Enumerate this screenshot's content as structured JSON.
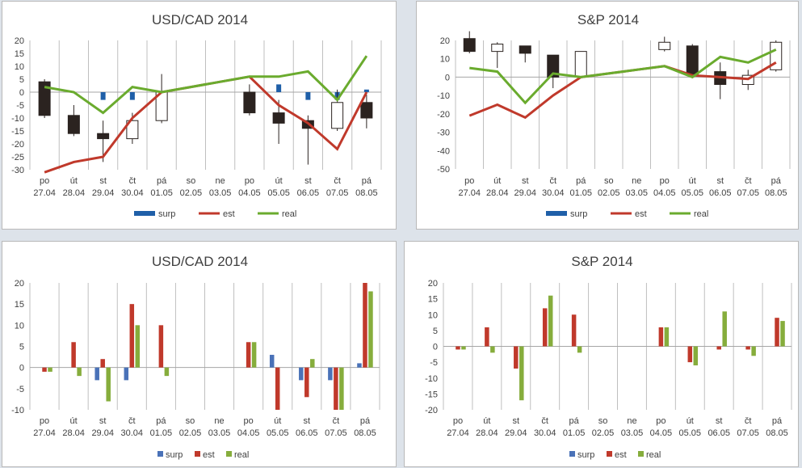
{
  "colors": {
    "surp": "#1f5fa8",
    "est": "#c0392b",
    "real": "#6aab2e",
    "candle_down": "#2b2320",
    "candle_up": "#ffffff",
    "grid": "#bfbfbf",
    "text": "#404040",
    "bar_surp": "#4a72b8",
    "bar_est": "#c0392b",
    "bar_real": "#86ad3c"
  },
  "chart_data": [
    {
      "type": "line",
      "title": "USD/CAD 2014",
      "ylim": [
        -30,
        20
      ],
      "yticks": [
        20,
        15,
        10,
        5,
        0,
        -5,
        -10,
        -15,
        -20,
        -25,
        -30
      ],
      "day_labels": [
        "po",
        "út",
        "st",
        "čt",
        "pá",
        "so",
        "ne",
        "po",
        "út",
        "st",
        "čt",
        "pá"
      ],
      "date_labels": [
        "27.04",
        "28.04",
        "29.04",
        "30.04",
        "01.05",
        "02.05",
        "03.05",
        "04.05",
        "05.05",
        "06.05",
        "07.05",
        "08.05"
      ],
      "legend": [
        "surp",
        "est",
        "real"
      ],
      "series": [
        {
          "name": "surp",
          "kind": "bar",
          "values": [
            0,
            0,
            -3,
            -3,
            0,
            null,
            null,
            0,
            3,
            -3,
            -3,
            1
          ]
        },
        {
          "name": "est",
          "kind": "line",
          "values": [
            -31,
            -27,
            -25,
            -10,
            0,
            2,
            4,
            6,
            -5,
            -12,
            -22,
            0
          ]
        },
        {
          "name": "real",
          "kind": "line",
          "values": [
            2,
            0,
            -8,
            2,
            0,
            2,
            4,
            6,
            6,
            8,
            -3,
            14
          ]
        }
      ],
      "candles": [
        {
          "open": 4,
          "close": -9,
          "high": 5,
          "low": -10
        },
        {
          "open": -9,
          "close": -16,
          "high": -5,
          "low": -17
        },
        {
          "open": -16,
          "close": -18,
          "high": -11,
          "low": -27
        },
        {
          "open": -18,
          "close": -11,
          "high": -8,
          "low": -20
        },
        {
          "open": -11,
          "close": 0,
          "high": 7,
          "low": -12
        },
        null,
        null,
        {
          "open": 0,
          "close": -8,
          "high": 3,
          "low": -9
        },
        {
          "open": -8,
          "close": -12,
          "high": -3,
          "low": -20
        },
        {
          "open": -11,
          "close": -14,
          "high": -9,
          "low": -28
        },
        {
          "open": -14,
          "close": -4,
          "high": 1,
          "low": -15
        },
        {
          "open": -4,
          "close": -10,
          "high": -1,
          "low": -14
        }
      ]
    },
    {
      "type": "line",
      "title": "S&P 2014",
      "ylim": [
        -50,
        20
      ],
      "yticks": [
        20,
        10,
        0,
        -10,
        -20,
        -30,
        -40,
        -50
      ],
      "day_labels": [
        "po",
        "út",
        "st",
        "čt",
        "pá",
        "so",
        "ne",
        "po",
        "út",
        "st",
        "čt",
        "pá"
      ],
      "date_labels": [
        "27.04",
        "28.04",
        "29.04",
        "30.04",
        "01.05",
        "02.05",
        "03.05",
        "04.05",
        "05.05",
        "06.05",
        "07.05",
        "08.05"
      ],
      "legend": [
        "surp",
        "est",
        "real"
      ],
      "series": [
        {
          "name": "surp",
          "kind": "bar",
          "values": [
            null,
            null,
            null,
            null,
            null,
            null,
            null,
            null,
            null,
            null,
            null,
            null
          ]
        },
        {
          "name": "est",
          "kind": "line",
          "values": [
            -21,
            -15,
            -22,
            -10,
            0,
            2,
            4,
            6,
            1,
            0,
            -1,
            8
          ]
        },
        {
          "name": "real",
          "kind": "line",
          "values": [
            5,
            3,
            -14,
            2,
            0,
            2,
            4,
            6,
            0,
            11,
            8,
            15
          ]
        }
      ],
      "candles": [
        {
          "open": 21,
          "close": 14,
          "high": 25,
          "low": 13
        },
        {
          "open": 14,
          "close": 18,
          "high": 19,
          "low": 5
        },
        {
          "open": 17,
          "close": 13,
          "high": 17,
          "low": 8
        },
        {
          "open": 12,
          "close": 0,
          "high": 12,
          "low": -6
        },
        {
          "open": 0,
          "close": 14,
          "high": 14,
          "low": 0
        },
        null,
        null,
        {
          "open": 15,
          "close": 19,
          "high": 22,
          "low": 14
        },
        {
          "open": 17,
          "close": 1,
          "high": 18,
          "low": 0
        },
        {
          "open": 3,
          "close": -4,
          "high": 8,
          "low": -12
        },
        {
          "open": -4,
          "close": 1,
          "high": 4,
          "low": -7
        },
        {
          "open": 4,
          "close": 19,
          "high": 20,
          "low": 3
        }
      ]
    },
    {
      "type": "bar",
      "title": "USD/CAD 2014",
      "ylim": [
        -10,
        20
      ],
      "yticks": [
        20,
        15,
        10,
        5,
        0,
        -5,
        -10
      ],
      "day_labels": [
        "po",
        "út",
        "st",
        "čt",
        "pá",
        "so",
        "ne",
        "po",
        "út",
        "st",
        "čt",
        "pá"
      ],
      "date_labels": [
        "27.04",
        "28.04",
        "29.04",
        "30.04",
        "01.05",
        "02.05",
        "03.05",
        "04.05",
        "05.05",
        "06.05",
        "07.05",
        "08.05"
      ],
      "legend": [
        "surp",
        "est",
        "real"
      ],
      "series": [
        {
          "name": "surp",
          "values": [
            0,
            0,
            -3,
            -3,
            0,
            0,
            0,
            0,
            3,
            -3,
            -3,
            1
          ]
        },
        {
          "name": "est",
          "values": [
            -1,
            6,
            2,
            15,
            10,
            0,
            0,
            6,
            -10,
            -7,
            -10,
            20
          ]
        },
        {
          "name": "real",
          "values": [
            -1,
            -2,
            -8,
            10,
            -2,
            0,
            0,
            6,
            0,
            2,
            -10,
            18
          ]
        }
      ]
    },
    {
      "type": "bar",
      "title": "S&P 2014",
      "ylim": [
        -20,
        20
      ],
      "yticks": [
        20,
        15,
        10,
        5,
        0,
        -5,
        -10,
        -15,
        -20
      ],
      "day_labels": [
        "po",
        "út",
        "st",
        "čt",
        "pá",
        "so",
        "ne",
        "po",
        "út",
        "st",
        "čt",
        "pá"
      ],
      "date_labels": [
        "27.04",
        "28.04",
        "29.04",
        "30.04",
        "01.05",
        "02.05",
        "03.05",
        "04.05",
        "05.05",
        "06.05",
        "07.05",
        "08.05"
      ],
      "legend": [
        "surp",
        "est",
        "real"
      ],
      "series": [
        {
          "name": "surp",
          "values": [
            0,
            0,
            0,
            0,
            0,
            0,
            0,
            0,
            0,
            0,
            0,
            0
          ]
        },
        {
          "name": "est",
          "values": [
            -1,
            6,
            -7,
            12,
            10,
            0,
            0,
            6,
            -5,
            -1,
            -1,
            9
          ]
        },
        {
          "name": "real",
          "values": [
            -1,
            -2,
            -17,
            16,
            -2,
            0,
            0,
            6,
            -6,
            11,
            -3,
            8
          ]
        }
      ]
    }
  ]
}
